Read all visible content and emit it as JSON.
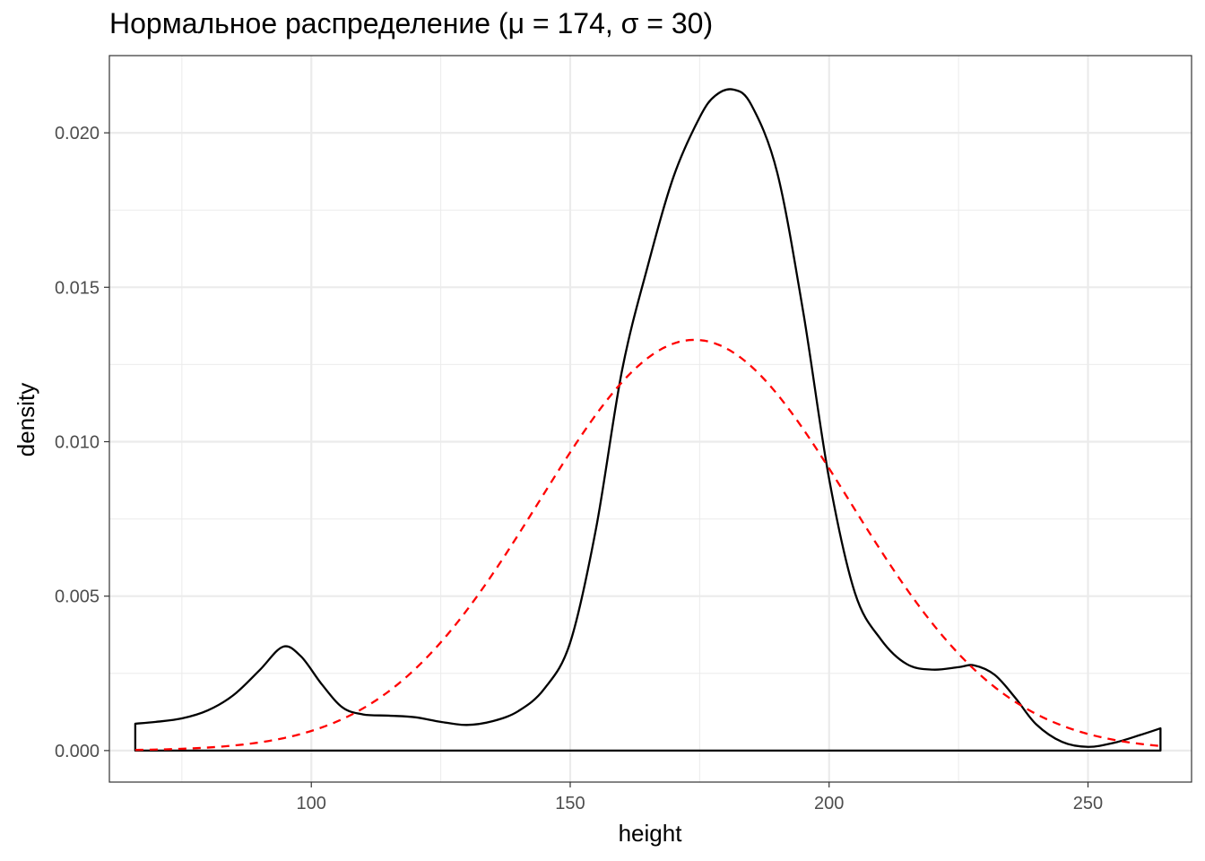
{
  "chart_data": {
    "type": "line",
    "title": "Нормальное распределение (μ = 174, σ = 30)",
    "xlabel": "height",
    "ylabel": "density",
    "xlim": [
      61,
      270
    ],
    "ylim": [
      -0.00102,
      0.0225
    ],
    "x_ticks": [
      100,
      150,
      200,
      250
    ],
    "x_tick_labels": [
      "100",
      "150",
      "200",
      "250"
    ],
    "y_ticks": [
      0,
      0.005,
      0.01,
      0.015,
      0.02
    ],
    "y_tick_labels": [
      "0.000",
      "0.005",
      "0.010",
      "0.015",
      "0.020"
    ],
    "grid": true,
    "series": [
      {
        "kind": "kde-outline",
        "color": "#000000",
        "dash": "solid",
        "x": [
          66,
          70,
          75,
          80,
          85,
          90,
          94.5,
          98,
          102,
          106,
          110,
          115,
          120,
          125,
          130,
          135,
          140,
          145,
          150,
          155,
          160,
          165,
          170,
          175,
          178,
          181.5,
          185,
          190,
          195,
          200,
          205,
          210,
          215,
          220,
          225,
          228,
          232,
          236,
          240,
          245,
          250,
          255,
          260,
          264
        ],
        "y": [
          0.00087,
          0.00093,
          0.00104,
          0.0013,
          0.0018,
          0.0026,
          0.00336,
          0.00305,
          0.00215,
          0.0014,
          0.00117,
          0.00113,
          0.00108,
          0.00093,
          0.00083,
          0.00095,
          0.00128,
          0.002,
          0.0035,
          0.0072,
          0.0123,
          0.0157,
          0.0186,
          0.0205,
          0.0212,
          0.0214,
          0.0209,
          0.0187,
          0.0142,
          0.0088,
          0.0051,
          0.0036,
          0.0028,
          0.00262,
          0.0027,
          0.00276,
          0.00245,
          0.0017,
          0.00085,
          0.00028,
          0.00012,
          0.00025,
          0.0005,
          0.00072
        ]
      },
      {
        "kind": "normal-curve",
        "name": "",
        "mu": 174,
        "sigma": 30,
        "x_range": [
          66,
          264
        ],
        "color": "#ff0000",
        "dash": "dashed"
      }
    ]
  }
}
